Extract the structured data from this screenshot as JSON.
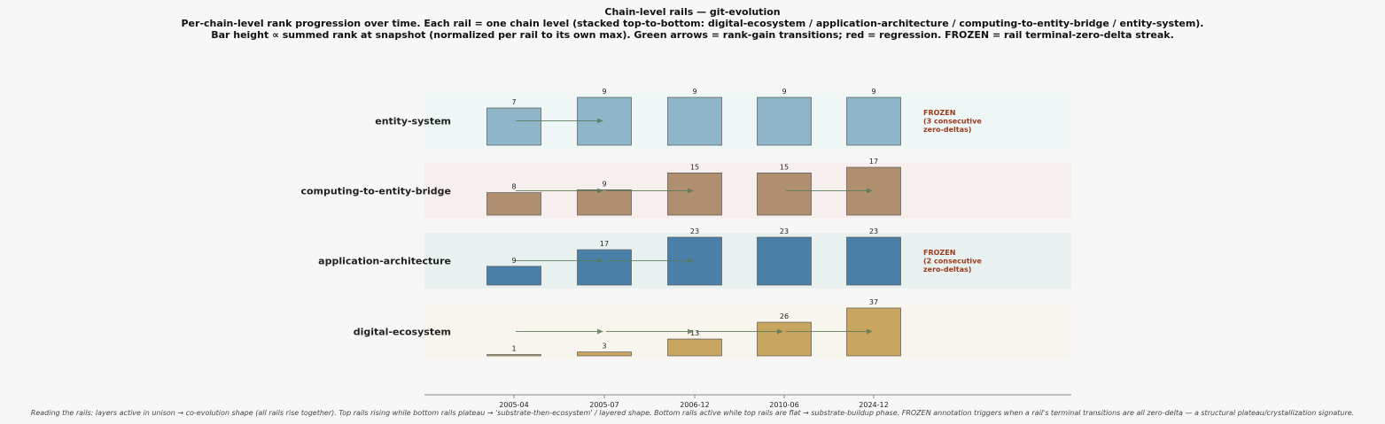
{
  "chart_data": {
    "type": "bar",
    "title": "Chain-level rails — git-evolution",
    "subtitle_lines": [
      "Per-chain-level rank progression over time. Each rail = one chain level (stacked top-to-bottom: digital-ecosystem / application-architecture / computing-to-entity-bridge / entity-system).",
      "Bar height ∝ summed rank at snapshot (normalized per rail to its own max). Green arrows = rank-gain transitions; red = regression. FROZEN = rail terminal-zero-delta streak."
    ],
    "snapshots": [
      "2005-04",
      "2005-07",
      "2006-12",
      "2010-06",
      "2024-12"
    ],
    "rails": [
      {
        "name": "entity-system",
        "values": [
          7,
          9,
          9,
          9,
          9
        ],
        "bar_color": "#8fb5c8",
        "band_color": "#eef6f6",
        "frozen": true,
        "frozen_lines": [
          "FROZEN",
          "(3 consecutive",
          "zero-deltas)"
        ]
      },
      {
        "name": "computing-to-entity-bridge",
        "values": [
          8,
          9,
          15,
          15,
          17
        ],
        "bar_color": "#b08e70",
        "band_color": "#f7eeee",
        "frozen": false,
        "frozen_lines": []
      },
      {
        "name": "application-architecture",
        "values": [
          9,
          17,
          23,
          23,
          23
        ],
        "bar_color": "#4a7fa8",
        "band_color": "#e8f0f0",
        "frozen": true,
        "frozen_lines": [
          "FROZEN",
          "(2 consecutive",
          "zero-deltas)"
        ]
      },
      {
        "name": "digital-ecosystem",
        "values": [
          1,
          3,
          13,
          26,
          37
        ],
        "bar_color": "#c9a660",
        "band_color": "#f7f5ee",
        "frozen": false,
        "frozen_lines": []
      }
    ],
    "gain_arrow_color": "#5a7a5a",
    "frozen_color": "#9a3a1a"
  },
  "caption": "Reading the rails: layers active in unison → co-evolution shape (all rails rise together).  Top rails rising while bottom rails plateau → 'substrate-then-ecosystem' / layered shape.  Bottom rails active while top rails are flat → substrate-buildup phase. FROZEN annotation triggers when a rail's terminal transitions are all zero-delta — a structural plateau/crystallization signature."
}
